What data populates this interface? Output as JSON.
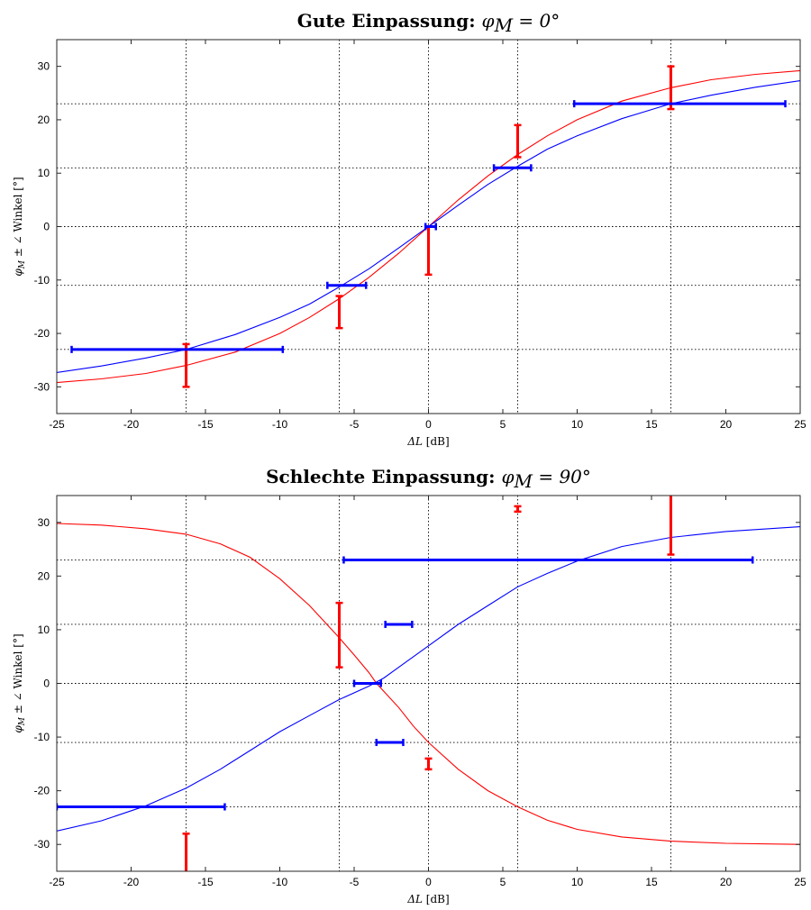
{
  "chart_data": [
    {
      "type": "line",
      "title": "Gute Einpassung:",
      "title_math": "φ",
      "title_math_sub": "M",
      "title_math_rest": " = 0°",
      "xlabel_math": "ΔL",
      "xlabel_unit": " [dB]",
      "ylabel_math": "φ",
      "ylabel_math_sub": "M",
      "ylabel_rest": " ± ∠ Winkel [°]",
      "xlim": [
        -25,
        25
      ],
      "ylim": [
        -35,
        35
      ],
      "xticks": [
        -25,
        -20,
        -15,
        -10,
        -5,
        0,
        5,
        10,
        15,
        20,
        25
      ],
      "yticks": [
        -30,
        -20,
        -10,
        0,
        10,
        20,
        30
      ],
      "ref_vlines": [
        -16.3,
        -6,
        0,
        6,
        16.3
      ],
      "ref_hlines": [
        -23,
        -11,
        0,
        11,
        23
      ],
      "grid": false,
      "colors": {
        "red": "#ff0000",
        "blue": "#0000ff",
        "ref": "#000000"
      },
      "curves": [
        {
          "color": "red",
          "points": [
            [
              -25,
              -29.2
            ],
            [
              -22,
              -28.5
            ],
            [
              -19,
              -27.5
            ],
            [
              -16.3,
              -26
            ],
            [
              -13,
              -23.5
            ],
            [
              -10,
              -20
            ],
            [
              -8,
              -17
            ],
            [
              -6,
              -13.5
            ],
            [
              -4,
              -9.5
            ],
            [
              -2,
              -5
            ],
            [
              0,
              0
            ],
            [
              2,
              5
            ],
            [
              4,
              9.5
            ],
            [
              6,
              13.5
            ],
            [
              8,
              17
            ],
            [
              10,
              20
            ],
            [
              13,
              23.5
            ],
            [
              16.3,
              26
            ],
            [
              19,
              27.5
            ],
            [
              22,
              28.5
            ],
            [
              25,
              29.2
            ]
          ]
        },
        {
          "color": "blue",
          "points": [
            [
              -25,
              -27.3
            ],
            [
              -22,
              -26.1
            ],
            [
              -19,
              -24.6
            ],
            [
              -16.3,
              -23
            ],
            [
              -13,
              -20.2
            ],
            [
              -10,
              -17
            ],
            [
              -8,
              -14.5
            ],
            [
              -6,
              -11.3
            ],
            [
              -4,
              -7.9
            ],
            [
              -2,
              -4
            ],
            [
              0,
              0
            ],
            [
              2,
              4
            ],
            [
              4,
              7.9
            ],
            [
              6,
              11.3
            ],
            [
              8,
              14.5
            ],
            [
              10,
              17
            ],
            [
              13,
              20.2
            ],
            [
              16.3,
              23
            ],
            [
              19,
              24.6
            ],
            [
              22,
              26.1
            ],
            [
              25,
              27.3
            ]
          ]
        }
      ],
      "v_errorbars": [
        {
          "x": -16.3,
          "y1": -30,
          "y2": -22
        },
        {
          "x": -6,
          "y1": -19,
          "y2": -13
        },
        {
          "x": 0,
          "y1": -9,
          "y2": 0
        },
        {
          "x": 6,
          "y1": 13,
          "y2": 19
        },
        {
          "x": 16.3,
          "y1": 22,
          "y2": 30
        }
      ],
      "h_errorbars": [
        {
          "y": -23,
          "x1": -24,
          "x2": -9.8
        },
        {
          "y": -11,
          "x1": -6.8,
          "x2": -4.2
        },
        {
          "y": 0,
          "x1": -0.2,
          "x2": 0.5
        },
        {
          "y": 11,
          "x1": 4.4,
          "x2": 6.9
        },
        {
          "y": 23,
          "x1": 9.8,
          "x2": 24
        }
      ]
    },
    {
      "type": "line",
      "title": "Schlechte Einpassung:",
      "title_math": "φ",
      "title_math_sub": "M",
      "title_math_rest": " = 90°",
      "xlabel_math": "ΔL",
      "xlabel_unit": " [dB]",
      "ylabel_math": "φ",
      "ylabel_math_sub": "M",
      "ylabel_rest": " ± ∠ Winkel [°]",
      "xlim": [
        -25,
        25
      ],
      "ylim": [
        -35,
        35
      ],
      "xticks": [
        -25,
        -20,
        -15,
        -10,
        -5,
        0,
        5,
        10,
        15,
        20,
        25
      ],
      "yticks": [
        -30,
        -20,
        -10,
        0,
        10,
        20,
        30
      ],
      "ref_vlines": [
        -16.3,
        -6,
        0,
        6,
        16.3
      ],
      "ref_hlines": [
        -23,
        -11,
        0,
        11,
        23
      ],
      "grid": false,
      "colors": {
        "red": "#ff0000",
        "blue": "#0000ff",
        "ref": "#000000"
      },
      "curves": [
        {
          "color": "red",
          "points": [
            [
              -25,
              29.8
            ],
            [
              -22,
              29.5
            ],
            [
              -19,
              28.8
            ],
            [
              -16.3,
              27.8
            ],
            [
              -14,
              26
            ],
            [
              -12,
              23.5
            ],
            [
              -10,
              19.5
            ],
            [
              -8,
              14.5
            ],
            [
              -6,
              8.5
            ],
            [
              -5,
              5.3
            ],
            [
              -4,
              2
            ],
            [
              -3.5,
              0
            ],
            [
              -3,
              -1.5
            ],
            [
              -2,
              -4.5
            ],
            [
              -1,
              -8
            ],
            [
              0,
              -11
            ],
            [
              2,
              -16
            ],
            [
              4,
              -20
            ],
            [
              6,
              -23
            ],
            [
              8,
              -25.5
            ],
            [
              10,
              -27.2
            ],
            [
              13,
              -28.6
            ],
            [
              16.3,
              -29.4
            ],
            [
              20,
              -29.8
            ],
            [
              25,
              -30
            ]
          ]
        },
        {
          "color": "blue",
          "points": [
            [
              -25,
              -27.5
            ],
            [
              -22,
              -25.6
            ],
            [
              -19,
              -22.8
            ],
            [
              -16.3,
              -19.5
            ],
            [
              -14,
              -16
            ],
            [
              -12,
              -12.5
            ],
            [
              -10,
              -9
            ],
            [
              -8,
              -6
            ],
            [
              -6,
              -3
            ],
            [
              -4,
              -0.5
            ],
            [
              -3,
              1
            ],
            [
              -2,
              3
            ],
            [
              -1,
              5
            ],
            [
              0,
              7
            ],
            [
              2,
              11
            ],
            [
              4,
              14.5
            ],
            [
              6,
              18
            ],
            [
              8,
              20.5
            ],
            [
              10,
              22.8
            ],
            [
              13,
              25.5
            ],
            [
              16.3,
              27.2
            ],
            [
              20,
              28.3
            ],
            [
              25,
              29.2
            ]
          ]
        }
      ],
      "v_errorbars": [
        {
          "x": -16.3,
          "y1": -38,
          "y2": -28
        },
        {
          "x": -6,
          "y1": 3,
          "y2": 15
        },
        {
          "x": 0,
          "y1": -16,
          "y2": -14
        },
        {
          "x": 6,
          "y1": 32,
          "y2": 33
        },
        {
          "x": 16.3,
          "y1": 24,
          "y2": 38
        }
      ],
      "h_errorbars": [
        {
          "y": -23,
          "x1": -25,
          "x2": -13.7
        },
        {
          "y": -11,
          "x1": -3.5,
          "x2": -1.7
        },
        {
          "y": 0,
          "x1": -5,
          "x2": -3.2
        },
        {
          "y": 11,
          "x1": -2.9,
          "x2": -1.1
        },
        {
          "y": 23,
          "x1": -5.7,
          "x2": 21.8
        }
      ]
    }
  ]
}
